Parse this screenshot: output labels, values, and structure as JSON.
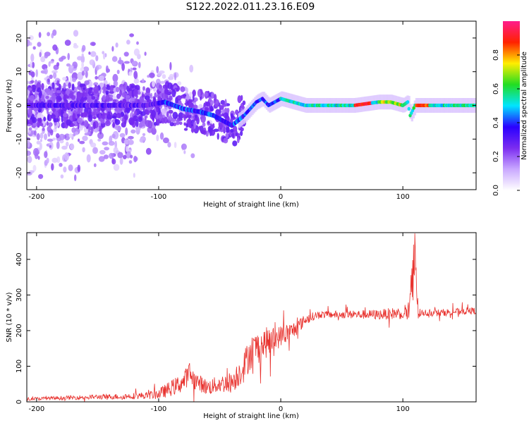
{
  "title": "S122.2022.011.23.16.E09",
  "chart_data": [
    {
      "type": "heatmap",
      "xlabel": "Height of straight line (km)",
      "ylabel": "Frequency (Hz)",
      "xlim": [
        -208,
        160
      ],
      "ylim": [
        -25,
        25
      ],
      "xticks": [
        -200,
        -100,
        0,
        100
      ],
      "yticks": [
        -20,
        -10,
        0,
        10,
        20
      ],
      "colorbar": {
        "label": "Normalized spectral amplitude",
        "range": [
          0.0,
          1.0
        ],
        "ticks": [
          0.0,
          0.2,
          0.4,
          0.6,
          0.8
        ],
        "colors": [
          "#ffffff",
          "#c9a8ff",
          "#7b2cf0",
          "#2a00ff",
          "#00e5ff",
          "#22dd22",
          "#ffee00",
          "#ff2200",
          "#ff1c8c"
        ]
      },
      "ridge": {
        "x": [
          -200,
          -150,
          -110,
          -95,
          -80,
          -65,
          -55,
          -45,
          -40,
          -30,
          -20,
          -15,
          -10,
          0,
          20,
          60,
          80,
          90,
          100,
          104,
          106,
          110,
          130,
          160
        ],
        "y": [
          0,
          0,
          0,
          1,
          -1,
          -2,
          -3,
          -5,
          -6,
          -3,
          1,
          2,
          0,
          2,
          0,
          0,
          1,
          1,
          0,
          1,
          -3,
          0,
          0,
          0
        ]
      }
    },
    {
      "type": "line",
      "xlabel": "Height of straight line (km)",
      "ylabel": "SNR (10 * v/v)",
      "xlim": [
        -208,
        160
      ],
      "ylim": [
        0,
        475
      ],
      "xticks": [
        -200,
        -100,
        0,
        100
      ],
      "yticks": [
        0,
        100,
        200,
        300,
        400
      ],
      "series": [
        {
          "color": "#e8322e",
          "x": [
            -208,
            -190,
            -170,
            -150,
            -130,
            -110,
            -100,
            -90,
            -80,
            -75,
            -70,
            -60,
            -50,
            -40,
            -30,
            -25,
            -20,
            -15,
            -10,
            -5,
            0,
            10,
            20,
            30,
            40,
            60,
            80,
            100,
            105,
            108,
            110,
            112,
            115,
            130,
            150,
            160
          ],
          "y": [
            8,
            10,
            12,
            14,
            15,
            18,
            22,
            38,
            55,
            80,
            60,
            40,
            50,
            55,
            100,
            140,
            150,
            160,
            170,
            175,
            185,
            200,
            230,
            245,
            245,
            245,
            245,
            250,
            255,
            300,
            470,
            260,
            250,
            250,
            255,
            255
          ],
          "noise": [
            4,
            5,
            6,
            7,
            8,
            10,
            15,
            22,
            28,
            30,
            25,
            22,
            25,
            30,
            45,
            50,
            48,
            45,
            42,
            35,
            30,
            25,
            15,
            10,
            10,
            12,
            14,
            18,
            40,
            120,
            200,
            40,
            10,
            10,
            10,
            10
          ]
        }
      ]
    }
  ]
}
